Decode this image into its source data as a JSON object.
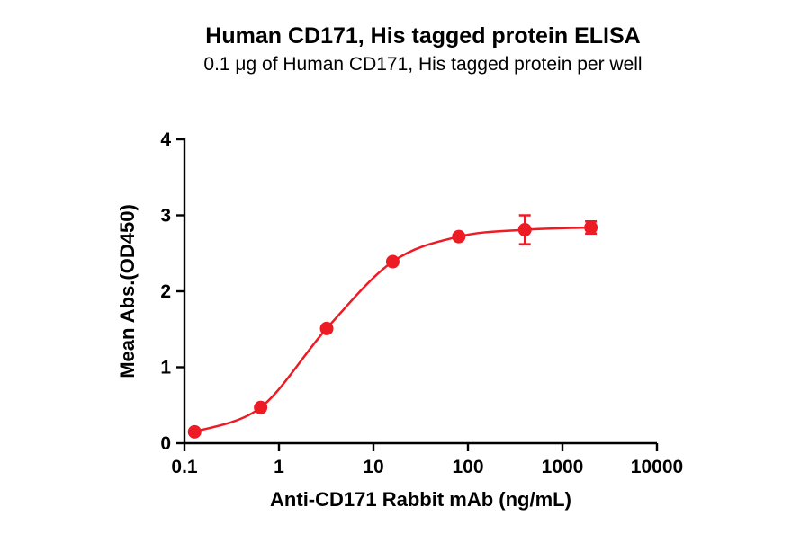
{
  "chart_data": {
    "type": "line",
    "title": "Human CD171, His tagged protein ELISA",
    "subtitle": "0.1 μg of Human CD171, His tagged protein per well",
    "xlabel": "Anti-CD171 Rabbit mAb (ng/mL)",
    "ylabel": "Mean Abs.(OD450)",
    "x_scale": "log",
    "xlim": [
      0.1,
      10000
    ],
    "ylim": [
      0,
      4
    ],
    "x_ticks": [
      0.1,
      1,
      10,
      100,
      1000,
      10000
    ],
    "x_tick_labels": [
      "0.1",
      "1",
      "10",
      "100",
      "1000",
      "10000"
    ],
    "y_ticks": [
      0,
      1,
      2,
      3,
      4
    ],
    "y_tick_labels": [
      "0",
      "1",
      "2",
      "3",
      "4"
    ],
    "x": [
      0.128,
      0.64,
      3.2,
      16,
      80,
      400,
      2000
    ],
    "y": [
      0.15,
      0.47,
      1.51,
      2.39,
      2.72,
      2.81,
      2.84
    ],
    "y_err": [
      0,
      0,
      0,
      0,
      0,
      0.19,
      0.08
    ],
    "marker": "circle",
    "marker_color": "#ED1C24",
    "line_color": "#ED1C24",
    "axis_color": "#000000",
    "grid": false,
    "legend": null
  }
}
